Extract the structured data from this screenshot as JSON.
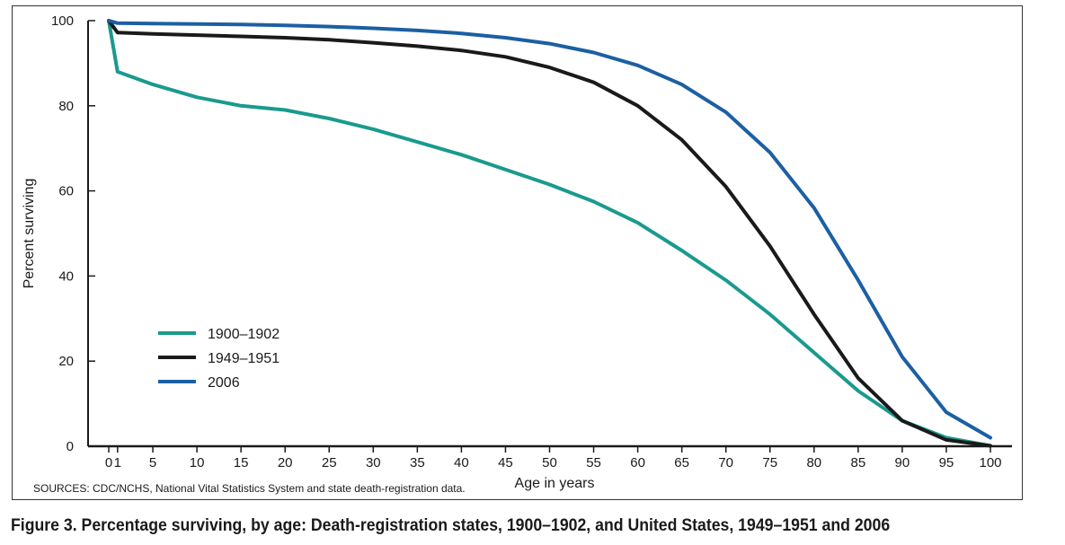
{
  "caption": "Figure 3. Percentage surviving, by age: Death-registration states, 1900–1902, and United States, 1949–1951 and 2006",
  "source": "SOURCES: CDC/NCHS, National Vital Statistics System and state death-registration data.",
  "chart_data": {
    "type": "line",
    "title": "",
    "xlabel": "Age in years",
    "ylabel": "Percent surviving",
    "xlim": [
      0,
      100
    ],
    "ylim": [
      0,
      100
    ],
    "xticks": [
      0,
      1,
      5,
      10,
      15,
      20,
      25,
      30,
      35,
      40,
      45,
      50,
      55,
      60,
      65,
      70,
      75,
      80,
      85,
      90,
      95,
      100
    ],
    "xtick_labels": [
      "0",
      "1",
      "5",
      "10",
      "15",
      "20",
      "25",
      "30",
      "35",
      "40",
      "45",
      "50",
      "55",
      "60",
      "65",
      "70",
      "75",
      "80",
      "85",
      "90",
      "95",
      "100"
    ],
    "yticks": [
      0,
      20,
      40,
      60,
      80,
      100
    ],
    "ytick_labels": [
      "0",
      "20",
      "40",
      "60",
      "80",
      "100"
    ],
    "grid": false,
    "legend_position": "lower-left",
    "x": [
      0,
      1,
      5,
      10,
      15,
      20,
      25,
      30,
      35,
      40,
      45,
      50,
      55,
      60,
      65,
      70,
      75,
      80,
      85,
      90,
      95,
      100
    ],
    "series": [
      {
        "name": "1900–1902",
        "color": "#1a9a8e",
        "values": [
          100,
          88,
          85,
          82,
          80,
          79,
          77,
          74.5,
          71.5,
          68.5,
          65,
          61.5,
          57.5,
          52.5,
          46,
          39,
          31,
          22,
          13,
          6,
          2,
          0.1
        ]
      },
      {
        "name": "1949–1951",
        "color": "#1a1a1a",
        "values": [
          100,
          97.2,
          96.9,
          96.6,
          96.3,
          96,
          95.5,
          94.8,
          94,
          93,
          91.5,
          89,
          85.5,
          80,
          72,
          61,
          47,
          31,
          16,
          6,
          1.5,
          0.1
        ]
      },
      {
        "name": "2006",
        "color": "#1c5fa3",
        "values": [
          100,
          99.4,
          99.3,
          99.2,
          99.1,
          98.9,
          98.6,
          98.2,
          97.7,
          97,
          96,
          94.6,
          92.5,
          89.5,
          85,
          78.5,
          69,
          56,
          39,
          21,
          8,
          2
        ]
      }
    ]
  }
}
